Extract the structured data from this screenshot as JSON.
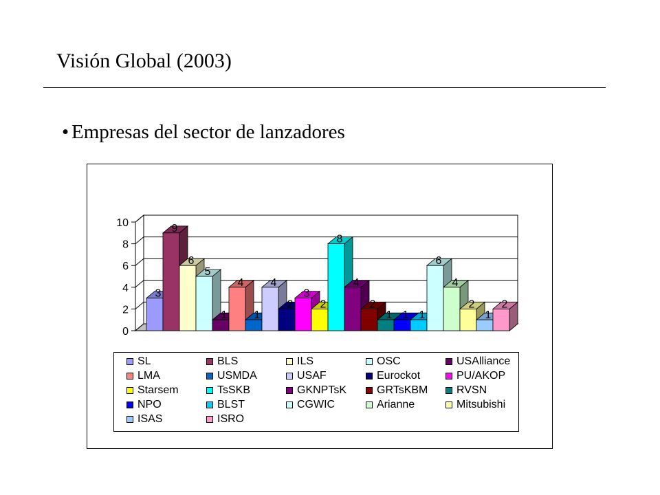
{
  "slide": {
    "title": "Visión Global (2003)",
    "bullet": "Empresas del sector de lanzadores"
  },
  "chart_data": {
    "type": "bar",
    "title": "",
    "xlabel": "",
    "ylabel": "",
    "ylim": [
      0,
      10
    ],
    "yticks": [
      "0",
      "2",
      "4",
      "6",
      "8",
      "10"
    ],
    "grid": true,
    "style": "3d-column",
    "legend_position": "bottom",
    "series": [
      {
        "name": "SL",
        "value": 3,
        "color": "#9a9aff"
      },
      {
        "name": "BLS",
        "value": 9,
        "color": "#993366"
      },
      {
        "name": "ILS",
        "value": 6,
        "color": "#ffffcc"
      },
      {
        "name": "OSC",
        "value": 5,
        "color": "#ccffff"
      },
      {
        "name": "USAlliance",
        "value": 1,
        "color": "#660066"
      },
      {
        "name": "LMA",
        "value": 4,
        "color": "#ff8080"
      },
      {
        "name": "USMDA",
        "value": 1,
        "color": "#0066cc"
      },
      {
        "name": "USAF",
        "value": 4,
        "color": "#ccccff"
      },
      {
        "name": "Eurockot",
        "value": 2,
        "color": "#000080"
      },
      {
        "name": "PU/AKOP",
        "value": 3,
        "color": "#ff00ff"
      },
      {
        "name": "Starsem",
        "value": 2,
        "color": "#ffff00"
      },
      {
        "name": "TsSKB",
        "value": 8,
        "color": "#00ffff"
      },
      {
        "name": "GKNPTsK",
        "value": 4,
        "color": "#800080"
      },
      {
        "name": "GRTsKBM",
        "value": 2,
        "color": "#800000"
      },
      {
        "name": "RVSN",
        "value": 1,
        "color": "#008080"
      },
      {
        "name": "NPO",
        "value": 1,
        "color": "#0000ff"
      },
      {
        "name": "BLST",
        "value": 1,
        "color": "#00ccff"
      },
      {
        "name": "CGWIC",
        "value": 6,
        "color": "#ccffff"
      },
      {
        "name": "Arianne",
        "value": 4,
        "color": "#ccffcc"
      },
      {
        "name": "Mitsubishi",
        "value": 2,
        "color": "#ffff99"
      },
      {
        "name": "ISAS",
        "value": 1,
        "color": "#99ccff"
      },
      {
        "name": "ISRO",
        "value": 2,
        "color": "#ff99cc"
      }
    ]
  }
}
